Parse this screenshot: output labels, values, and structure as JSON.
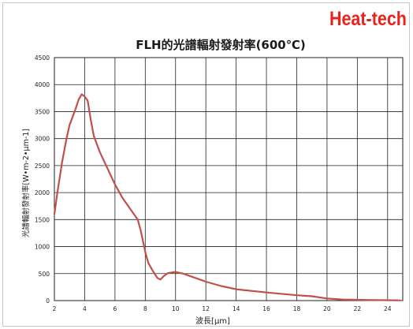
{
  "brand": "Heat-tech",
  "chart_data": {
    "type": "line",
    "title": "FLH的光譜輻射發射率(600℃)",
    "xlabel": "波長[μm]",
    "ylabel": "光譜輻射發射率[W•m-2•μm-1]",
    "xlim": [
      2,
      25
    ],
    "ylim": [
      0,
      4500
    ],
    "x_ticks": [
      2,
      4,
      6,
      8,
      10,
      12,
      14,
      16,
      18,
      20,
      22,
      24
    ],
    "y_ticks": [
      0,
      500,
      1000,
      1500,
      2000,
      2500,
      3000,
      3500,
      4000,
      4500
    ],
    "grid": true,
    "line_color": "#c0504d",
    "series": [
      {
        "x": [
          2.0,
          2.2,
          2.5,
          2.8,
          3.0,
          3.2,
          3.4,
          3.6,
          3.8,
          3.9,
          4.0,
          4.2,
          4.4,
          4.6,
          5.0,
          5.5,
          6.0,
          6.5,
          7.0,
          7.5,
          7.7,
          8.0,
          8.2,
          8.5,
          8.8,
          9.0,
          9.2,
          9.5,
          10.0,
          10.5,
          11.0,
          12.0,
          13.0,
          14.0,
          16.0,
          18.0,
          19.0,
          20.0,
          21.0,
          22.0,
          23.0,
          24.0,
          24.8
        ],
        "y": [
          1600,
          2000,
          2550,
          3000,
          3250,
          3400,
          3550,
          3720,
          3820,
          3800,
          3780,
          3700,
          3350,
          3050,
          2750,
          2450,
          2150,
          1900,
          1700,
          1500,
          1300,
          900,
          700,
          550,
          420,
          390,
          450,
          510,
          530,
          500,
          450,
          350,
          270,
          210,
          150,
          100,
          80,
          40,
          20,
          15,
          10,
          8,
          5
        ]
      }
    ]
  }
}
